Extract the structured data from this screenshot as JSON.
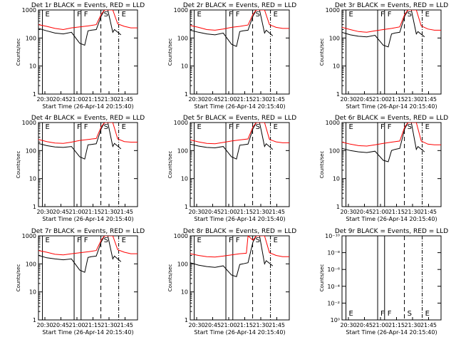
{
  "chart_data": [
    {
      "type": "line",
      "title": "Det 1r BLACK = Events, RED = LLD",
      "xlabel": "Start Time (26-Apr-14 20:15:40)",
      "ylabel": "Counts/sec",
      "x_ticks": [
        "20:30",
        "20:45",
        "21:00",
        "21:15",
        "21:30",
        "21:45"
      ],
      "y_ticks": [
        "1",
        "10",
        "100",
        "1000"
      ],
      "yscale": "log",
      "ylim": [
        1,
        1000
      ],
      "markers": [
        {
          "label": "E",
          "style": "solid"
        },
        {
          "label": "F",
          "style": "solid"
        },
        {
          "label": "F",
          "style": "solid"
        },
        {
          "label": "S",
          "style": "dashed"
        },
        {
          "label": "E",
          "style": "dashdot"
        }
      ],
      "series": [
        {
          "name": "BLACK = Events",
          "color": "#000000",
          "x": [
            0,
            5,
            10,
            15,
            20,
            25,
            28,
            30,
            32,
            35,
            38,
            40,
            42,
            45,
            46,
            50,
            55,
            60
          ],
          "y": [
            220,
            180,
            150,
            140,
            160,
            65,
            55,
            180,
            190,
            200,
            600,
            1000,
            1000,
            160,
            200,
            130,
            0,
            0
          ]
        },
        {
          "name": "RED = LLD",
          "color": "#ff0000",
          "x": [
            0,
            5,
            10,
            15,
            20,
            25,
            30,
            35,
            38,
            40,
            42,
            45,
            48,
            52,
            56,
            60
          ],
          "y": [
            300,
            260,
            220,
            200,
            230,
            250,
            270,
            300,
            700,
            1000,
            1000,
            1000,
            320,
            260,
            230,
            230
          ]
        }
      ]
    },
    {
      "type": "line",
      "title": "Det 2r BLACK = Events, RED = LLD",
      "xlabel": "Start Time (26-Apr-14 20:15:40)",
      "ylabel": "Counts/sec",
      "x_ticks": [
        "20:30",
        "20:45",
        "21:00",
        "21:15",
        "21:30",
        "21:45"
      ],
      "y_ticks": [
        "1",
        "10",
        "100",
        "1000"
      ],
      "yscale": "log",
      "ylim": [
        1,
        1000
      ],
      "markers": [
        {
          "label": "E",
          "style": "solid"
        },
        {
          "label": "F",
          "style": "solid"
        },
        {
          "label": "F",
          "style": "solid"
        },
        {
          "label": "S",
          "style": "dashed"
        },
        {
          "label": "E",
          "style": "dashdot"
        }
      ],
      "series": [
        {
          "name": "BLACK = Events",
          "color": "#000000",
          "x": [
            0,
            5,
            10,
            15,
            20,
            25,
            28,
            30,
            32,
            35,
            38,
            40,
            42,
            45,
            46,
            50
          ],
          "y": [
            190,
            160,
            140,
            130,
            150,
            60,
            50,
            170,
            180,
            190,
            600,
            1000,
            1000,
            150,
            190,
            120
          ]
        },
        {
          "name": "RED = LLD",
          "color": "#ff0000",
          "x": [
            0,
            5,
            10,
            15,
            20,
            25,
            30,
            35,
            38,
            40,
            42,
            45,
            48,
            52,
            56,
            60
          ],
          "y": [
            280,
            240,
            200,
            190,
            210,
            240,
            260,
            290,
            700,
            1000,
            1000,
            1000,
            300,
            240,
            220,
            220
          ]
        }
      ]
    },
    {
      "type": "line",
      "title": "Det 3r BLACK = Events, RED = LLD",
      "xlabel": "Start Time (26-Apr-14 20:15:40)",
      "ylabel": "Counts/sec",
      "x_ticks": [
        "20:30",
        "20:45",
        "21:00",
        "21:15",
        "21:30",
        "21:45"
      ],
      "y_ticks": [
        "1",
        "10",
        "100",
        "1000"
      ],
      "yscale": "log",
      "ylim": [
        1,
        1000
      ],
      "markers": [
        {
          "label": "E",
          "style": "solid"
        },
        {
          "label": "F",
          "style": "solid"
        },
        {
          "label": "F",
          "style": "solid"
        },
        {
          "label": "S",
          "style": "dashed"
        },
        {
          "label": "E",
          "style": "dashdot"
        }
      ],
      "series": [
        {
          "name": "BLACK = Events",
          "color": "#000000",
          "x": [
            0,
            5,
            10,
            15,
            20,
            25,
            28,
            30,
            32,
            35,
            38,
            40,
            42,
            45,
            46,
            50
          ],
          "y": [
            160,
            130,
            115,
            110,
            125,
            55,
            48,
            140,
            150,
            160,
            600,
            1000,
            1000,
            140,
            170,
            110
          ]
        },
        {
          "name": "RED = LLD",
          "color": "#ff0000",
          "x": [
            0,
            5,
            10,
            15,
            20,
            25,
            30,
            35,
            38,
            40,
            42,
            45,
            48,
            52,
            56,
            60
          ],
          "y": [
            240,
            200,
            170,
            160,
            180,
            200,
            220,
            250,
            700,
            1000,
            1000,
            1000,
            270,
            210,
            190,
            190
          ]
        }
      ]
    },
    {
      "type": "line",
      "title": "Det 4r BLACK = Events, RED = LLD",
      "xlabel": "Start Time (26-Apr-14 20:15:40)",
      "ylabel": "Counts/sec",
      "x_ticks": [
        "20:30",
        "20:45",
        "21:00",
        "21:15",
        "21:30",
        "21:45"
      ],
      "y_ticks": [
        "1",
        "10",
        "100",
        "1000"
      ],
      "yscale": "log",
      "ylim": [
        1,
        1000
      ],
      "markers": [
        {
          "label": "E",
          "style": "solid"
        },
        {
          "label": "F",
          "style": "solid"
        },
        {
          "label": "F",
          "style": "solid"
        },
        {
          "label": "S",
          "style": "dashed"
        },
        {
          "label": "E",
          "style": "dashdot"
        }
      ],
      "series": [
        {
          "name": "BLACK = Events",
          "color": "#000000",
          "x": [
            0,
            5,
            10,
            15,
            20,
            25,
            28,
            30,
            32,
            35,
            38,
            40,
            42,
            45,
            46,
            50
          ],
          "y": [
            180,
            150,
            135,
            130,
            140,
            60,
            50,
            160,
            165,
            175,
            600,
            1000,
            1000,
            140,
            180,
            115
          ]
        },
        {
          "name": "RED = LLD",
          "color": "#ff0000",
          "x": [
            0,
            5,
            10,
            15,
            20,
            25,
            30,
            35,
            38,
            40,
            42,
            45,
            48,
            52,
            56,
            60
          ],
          "y": [
            250,
            210,
            185,
            180,
            200,
            230,
            250,
            270,
            700,
            1000,
            1000,
            1000,
            260,
            210,
            200,
            200
          ]
        }
      ]
    },
    {
      "type": "line",
      "title": "Det 5r BLACK = Events, RED = LLD",
      "xlabel": "Start Time (26-Apr-14 20:15:40)",
      "ylabel": "Counts/sec",
      "x_ticks": [
        "20:30",
        "20:45",
        "21:00",
        "21:15",
        "21:30",
        "21:45"
      ],
      "y_ticks": [
        "1",
        "10",
        "100",
        "1000"
      ],
      "yscale": "log",
      "ylim": [
        1,
        1000
      ],
      "markers": [
        {
          "label": "E",
          "style": "solid"
        },
        {
          "label": "F",
          "style": "solid"
        },
        {
          "label": "F",
          "style": "solid"
        },
        {
          "label": "S",
          "style": "dashed"
        },
        {
          "label": "E",
          "style": "dashdot"
        }
      ],
      "series": [
        {
          "name": "BLACK = Events",
          "color": "#000000",
          "x": [
            0,
            5,
            10,
            15,
            20,
            25,
            28,
            30,
            32,
            35,
            38,
            40,
            42,
            45,
            46,
            50
          ],
          "y": [
            170,
            145,
            130,
            125,
            140,
            60,
            50,
            155,
            160,
            170,
            600,
            1000,
            1000,
            140,
            175,
            110
          ]
        },
        {
          "name": "RED = LLD",
          "color": "#ff0000",
          "x": [
            0,
            5,
            10,
            15,
            20,
            25,
            30,
            35,
            38,
            40,
            42,
            45,
            48,
            52,
            56,
            60
          ],
          "y": [
            240,
            205,
            180,
            175,
            195,
            220,
            240,
            260,
            700,
            1000,
            1000,
            1000,
            250,
            205,
            190,
            190
          ]
        }
      ]
    },
    {
      "type": "line",
      "title": "Det 6r BLACK = Events, RED = LLD",
      "xlabel": "Start Time (26-Apr-14 20:15:40)",
      "ylabel": "Counts/sec",
      "x_ticks": [
        "20:30",
        "20:45",
        "21:00",
        "21:15",
        "21:30",
        "21:45"
      ],
      "y_ticks": [
        "1",
        "10",
        "100",
        "1000"
      ],
      "yscale": "log",
      "ylim": [
        1,
        1000
      ],
      "markers": [
        {
          "label": "E",
          "style": "solid"
        },
        {
          "label": "F",
          "style": "solid"
        },
        {
          "label": "F",
          "style": "solid"
        },
        {
          "label": "S",
          "style": "dashed"
        },
        {
          "label": "E",
          "style": "dashdot"
        }
      ],
      "series": [
        {
          "name": "BLACK = Events",
          "color": "#000000",
          "x": [
            0,
            5,
            10,
            15,
            20,
            25,
            28,
            30,
            32,
            35,
            38,
            40,
            42,
            45,
            46,
            50
          ],
          "y": [
            120,
            100,
            90,
            85,
            95,
            45,
            40,
            100,
            110,
            120,
            600,
            1000,
            1000,
            110,
            140,
            90
          ]
        },
        {
          "name": "RED = LLD",
          "color": "#ff0000",
          "x": [
            0,
            5,
            10,
            15,
            20,
            25,
            30,
            35,
            38,
            40,
            42,
            45,
            48,
            52,
            56,
            60
          ],
          "y": [
            200,
            170,
            150,
            145,
            160,
            180,
            200,
            220,
            700,
            1000,
            1000,
            1000,
            220,
            170,
            160,
            160
          ]
        }
      ]
    },
    {
      "type": "line",
      "title": "Det 7r BLACK = Events, RED = LLD",
      "xlabel": "Start Time (26-Apr-14 20:15:40)",
      "ylabel": "Counts/sec",
      "x_ticks": [
        "20:30",
        "20:45",
        "21:00",
        "21:15",
        "21:30",
        "21:45"
      ],
      "y_ticks": [
        "1",
        "10",
        "100",
        "1000"
      ],
      "yscale": "log",
      "ylim": [
        1,
        1000
      ],
      "markers": [
        {
          "label": "E",
          "style": "solid"
        },
        {
          "label": "F",
          "style": "solid"
        },
        {
          "label": "F",
          "style": "solid"
        },
        {
          "label": "S",
          "style": "dashed"
        },
        {
          "label": "E",
          "style": "dashdot"
        }
      ],
      "series": [
        {
          "name": "BLACK = Events",
          "color": "#000000",
          "x": [
            0,
            5,
            10,
            15,
            20,
            25,
            28,
            30,
            32,
            35,
            38,
            40,
            42,
            45,
            46,
            50
          ],
          "y": [
            200,
            165,
            150,
            140,
            150,
            60,
            50,
            170,
            180,
            190,
            600,
            1000,
            1000,
            150,
            190,
            120
          ]
        },
        {
          "name": "RED = LLD",
          "color": "#ff0000",
          "x": [
            0,
            5,
            10,
            15,
            20,
            25,
            30,
            35,
            38,
            40,
            42,
            45,
            48,
            52,
            56,
            60
          ],
          "y": [
            300,
            260,
            220,
            210,
            230,
            250,
            270,
            300,
            700,
            1000,
            1000,
            1000,
            320,
            260,
            230,
            230
          ]
        }
      ]
    },
    {
      "type": "line",
      "title": "Det 8r BLACK = Events, RED = LLD",
      "xlabel": "Start Time (26-Apr-14 20:15:40)",
      "ylabel": "Counts/sec",
      "x_ticks": [
        "20:30",
        "20:45",
        "21:00",
        "21:15",
        "21:30",
        "21:45"
      ],
      "y_ticks": [
        "1",
        "10",
        "100",
        "1000"
      ],
      "yscale": "log",
      "ylim": [
        1,
        1000
      ],
      "markers": [
        {
          "label": "E",
          "style": "solid"
        },
        {
          "label": "F",
          "style": "solid"
        },
        {
          "label": "F",
          "style": "solid"
        },
        {
          "label": "S",
          "style": "dashed"
        },
        {
          "label": "E",
          "style": "dashdot"
        }
      ],
      "series": [
        {
          "name": "BLACK = Events",
          "color": "#000000",
          "x": [
            0,
            5,
            10,
            15,
            20,
            25,
            28,
            30,
            32,
            35,
            38,
            40,
            42,
            45,
            46,
            50
          ],
          "y": [
            110,
            90,
            80,
            75,
            85,
            40,
            35,
            95,
            100,
            110,
            600,
            1000,
            1000,
            100,
            130,
            85
          ]
        },
        {
          "name": "RED = LLD",
          "color": "#ff0000",
          "x": [
            0,
            5,
            10,
            15,
            20,
            25,
            30,
            34,
            35,
            38,
            40,
            42,
            45,
            48,
            52,
            56,
            60
          ],
          "y": [
            230,
            200,
            180,
            175,
            190,
            210,
            230,
            240,
            1000,
            700,
            1000,
            1000,
            1000,
            250,
            200,
            180,
            180
          ]
        }
      ]
    },
    {
      "type": "line",
      "title": "Det 9r BLACK = Events, RED = LLD",
      "xlabel": "Start Time (26-Apr-14 20:15:40)",
      "ylabel": "Counts/sec",
      "x_ticks": [
        "20:30",
        "20:45",
        "21:00",
        "21:15",
        "21:30",
        "21:45"
      ],
      "y_ticks": [
        "10⁰",
        "10⁻²",
        "10⁻⁴",
        "10⁻⁶",
        "10⁻⁸",
        "10⁻¹⁰"
      ],
      "yscale": "log",
      "ylim": [
        1e-10,
        1
      ],
      "markers": [
        {
          "label": "E",
          "style": "solid"
        },
        {
          "label": "F",
          "style": "solid"
        },
        {
          "label": "F",
          "style": "solid"
        },
        {
          "label": "S",
          "style": "dashed"
        },
        {
          "label": "E",
          "style": "dashdot"
        }
      ],
      "series": []
    }
  ]
}
